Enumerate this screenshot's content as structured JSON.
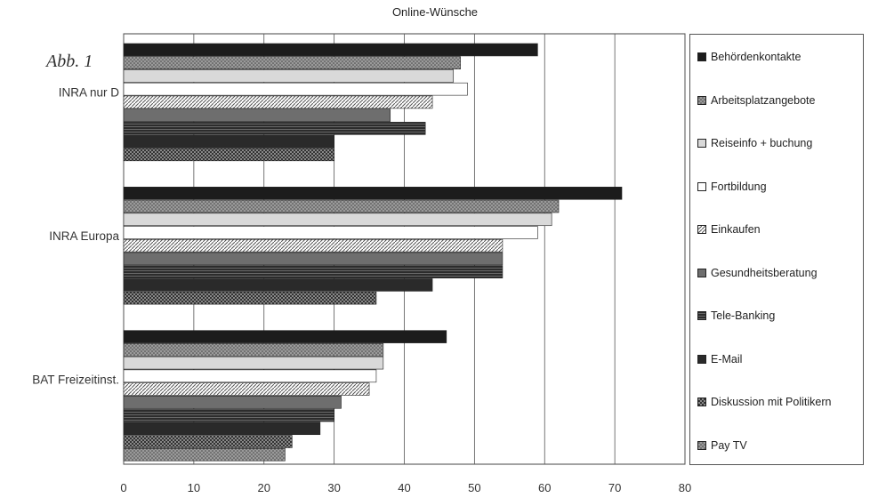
{
  "chart_data": {
    "type": "bar",
    "orientation": "horizontal",
    "title": "Online-Wünsche",
    "annotation": "Abb. 1",
    "categories": [
      "INRA nur D",
      "INRA Europa",
      "BAT Freizeitinst."
    ],
    "xlim": [
      0,
      80
    ],
    "xticks": [
      "0",
      "10",
      "20",
      "30",
      "40",
      "50",
      "60",
      "70",
      "80"
    ],
    "grid": true,
    "legend_position": "right",
    "series": [
      {
        "name": "Behördenkontakte",
        "color": "#1c1c1c",
        "pattern": "solid",
        "values": [
          59,
          71,
          46
        ]
      },
      {
        "name": "Arbeitsplatzangebote",
        "color": "#8c8c8c",
        "pattern": "dots",
        "values": [
          48,
          62,
          37
        ]
      },
      {
        "name": "Reiseinfo + buchung",
        "color": "#d9d9d9",
        "pattern": "solid",
        "values": [
          47,
          61,
          37
        ]
      },
      {
        "name": "Fortbildung",
        "color": "#ffffff",
        "pattern": "solid",
        "values": [
          49,
          59,
          36
        ]
      },
      {
        "name": "Einkaufen",
        "color": "#a8a8a8",
        "pattern": "diag",
        "values": [
          44,
          54,
          35
        ]
      },
      {
        "name": "Gesundheitsberatung",
        "color": "#6e6e6e",
        "pattern": "solid",
        "values": [
          38,
          54,
          31
        ]
      },
      {
        "name": "Tele-Banking",
        "color": "#3a3a3a",
        "pattern": "hlines",
        "values": [
          43,
          54,
          30
        ]
      },
      {
        "name": "E-Mail",
        "color": "#2a2a2a",
        "pattern": "solid",
        "values": [
          30,
          44,
          28
        ]
      },
      {
        "name": "Diskussion mit Politikern",
        "color": "#444444",
        "pattern": "check",
        "values": [
          30,
          36,
          24
        ]
      },
      {
        "name": "Pay TV",
        "color": "#bdbdbd",
        "pattern": "dots",
        "values": [
          0,
          0,
          23
        ]
      }
    ]
  }
}
